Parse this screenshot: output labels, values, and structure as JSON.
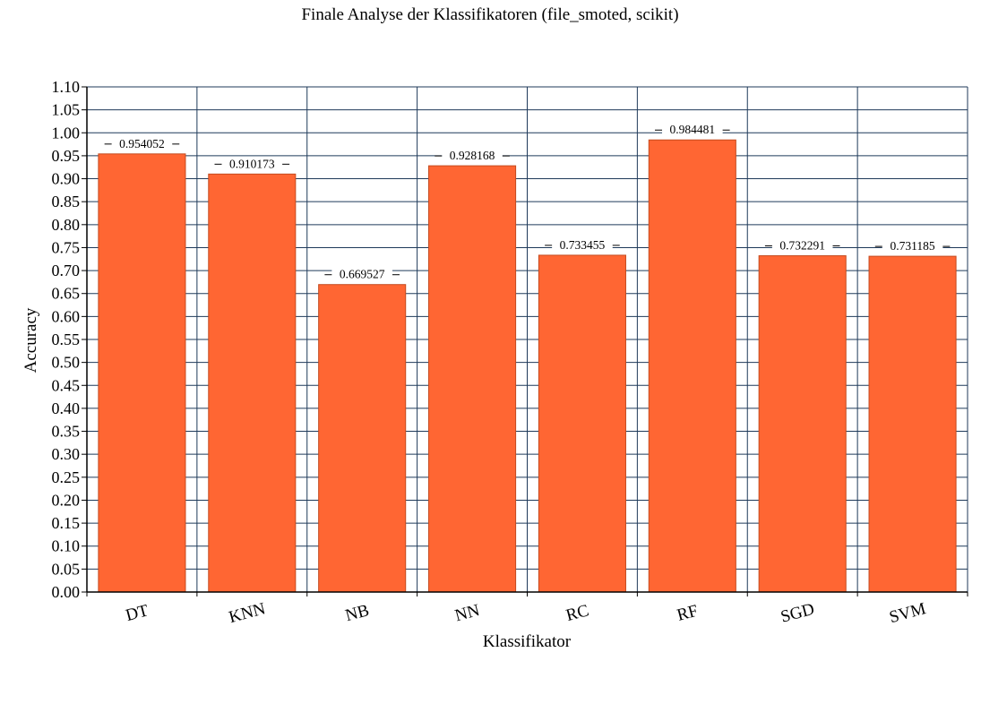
{
  "chart_data": {
    "type": "bar",
    "title": "Finale Analyse der Klassifikatoren (file_smoted, scikit)",
    "xlabel": "Klassifikator",
    "ylabel": "Accuracy",
    "categories": [
      "DT",
      "KNN",
      "NB",
      "NN",
      "RC",
      "RF",
      "SGD",
      "SVM"
    ],
    "values": [
      0.954052,
      0.910173,
      0.669527,
      0.928168,
      0.733455,
      0.984481,
      0.732291,
      0.731185
    ],
    "value_labels": [
      "0.954052",
      "0.910173",
      "0.669527",
      "0.928168",
      "0.733455",
      "0.984481",
      "0.732291",
      "0.731185"
    ],
    "ylim": [
      0,
      1.1
    ],
    "yticks": [
      "0.00",
      "0.05",
      "0.10",
      "0.15",
      "0.20",
      "0.25",
      "0.30",
      "0.35",
      "0.40",
      "0.45",
      "0.50",
      "0.55",
      "0.60",
      "0.65",
      "0.70",
      "0.75",
      "0.80",
      "0.85",
      "0.90",
      "0.95",
      "1.00",
      "1.05",
      "1.10"
    ],
    "grid": true,
    "legend": "none",
    "colors": {
      "bar": "#ff6633",
      "bar_stroke": "#c44a1e",
      "grid": "#1f3a5a",
      "axis": "#000000"
    }
  }
}
